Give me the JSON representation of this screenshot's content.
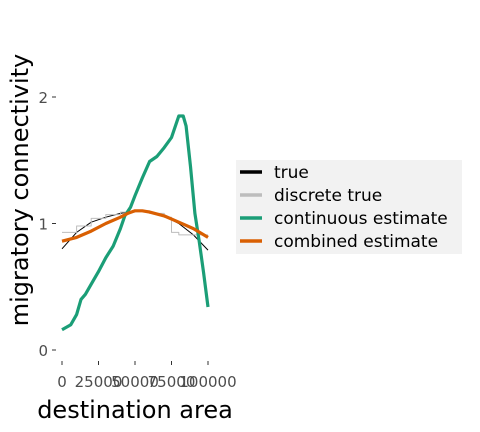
{
  "chart_data": {
    "type": "line",
    "title": "",
    "xlabel": "destination area",
    "ylabel": "migratory connectivity",
    "xlim": [
      0,
      100000
    ],
    "ylim": [
      -0.05,
      2.45
    ],
    "x_ticks": [
      0,
      25000,
      50000,
      75000,
      100000
    ],
    "x_tick_labels": [
      "0",
      "25000",
      "50000",
      "75000",
      "100000"
    ],
    "y_ticks": [
      0,
      1,
      2
    ],
    "y_tick_labels": [
      "0",
      "1",
      "2"
    ],
    "grid": false,
    "legend_position": "right",
    "series": [
      {
        "name": "true",
        "color": "#000000",
        "style": "thin",
        "x": [
          0,
          10000,
          20000,
          30000,
          40000,
          50000,
          60000,
          70000,
          80000,
          90000,
          100000
        ],
        "y": [
          0.8,
          0.93,
          1.01,
          1.05,
          1.08,
          1.1,
          1.09,
          1.06,
          1.0,
          0.91,
          0.79
        ]
      },
      {
        "name": "discrete true",
        "color": "#bdbdbd",
        "style": "thin",
        "x": [
          0,
          10000,
          10000,
          20000,
          20000,
          30000,
          30000,
          40000,
          40000,
          50000,
          50000,
          60000,
          60000,
          70000,
          70000,
          75000,
          75000,
          80000,
          80000,
          100000
        ],
        "y": [
          0.93,
          0.93,
          0.98,
          0.98,
          1.04,
          1.04,
          1.07,
          1.07,
          1.09,
          1.09,
          1.1,
          1.1,
          1.08,
          1.08,
          1.05,
          1.05,
          0.93,
          0.93,
          0.91,
          0.91
        ]
      },
      {
        "name": "continuous estimate",
        "color": "#1b9e77",
        "style": "thick",
        "x": [
          0,
          6000,
          10000,
          13000,
          16000,
          20000,
          25000,
          30000,
          35000,
          40000,
          43000,
          47000,
          50000,
          55000,
          60000,
          65000,
          70000,
          75000,
          80000,
          83000,
          85000,
          88000,
          91000,
          94000,
          97000,
          100000
        ],
        "y": [
          0.16,
          0.2,
          0.28,
          0.4,
          0.44,
          0.52,
          0.62,
          0.73,
          0.82,
          0.96,
          1.06,
          1.13,
          1.22,
          1.36,
          1.49,
          1.53,
          1.6,
          1.68,
          1.85,
          1.85,
          1.77,
          1.45,
          1.08,
          0.86,
          0.61,
          0.34
        ]
      },
      {
        "name": "combined estimate",
        "color": "#d95f02",
        "style": "thick",
        "x": [
          0,
          10000,
          20000,
          30000,
          40000,
          45000,
          50000,
          55000,
          60000,
          70000,
          80000,
          90000,
          100000
        ],
        "y": [
          0.86,
          0.89,
          0.94,
          1.0,
          1.05,
          1.08,
          1.1,
          1.1,
          1.09,
          1.06,
          1.01,
          0.96,
          0.89
        ]
      }
    ]
  }
}
